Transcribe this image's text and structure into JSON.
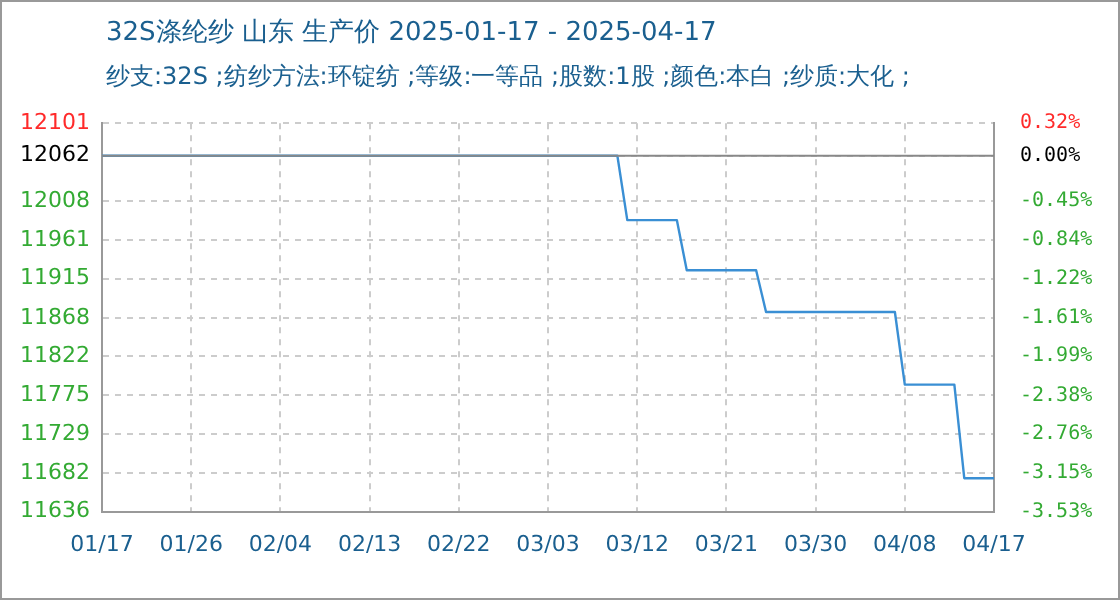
{
  "chart_data": {
    "type": "line",
    "title": "32S涤纶纱 山东 生产价 2025-01-17 - 2025-04-17",
    "subtitle": "纱支:32S ;纺纱方法:环锭纺 ;等级:一等品 ;股数:1股 ;颜色:本白 ;纱质:大化 ;",
    "x": [
      "2025-01-17",
      "2025-03-10",
      "2025-03-11",
      "2025-03-16",
      "2025-03-17",
      "2025-03-24",
      "2025-03-25",
      "2025-04-07",
      "2025-04-08",
      "2025-04-13",
      "2025-04-14",
      "2025-04-17"
    ],
    "series": [
      {
        "color": "#3a8fd4",
        "values": [
          12062,
          12062,
          11985,
          11985,
          11925,
          11925,
          11875,
          11875,
          11788,
          11788,
          11676,
          11676
        ]
      }
    ],
    "xlim": [
      "2025-01-17",
      "2025-04-17"
    ],
    "xticks": [
      {
        "value": "2025-01-17",
        "label": "01/17"
      },
      {
        "value": "2025-01-26",
        "label": "01/26"
      },
      {
        "value": "2025-02-04",
        "label": "02/04"
      },
      {
        "value": "2025-02-13",
        "label": "02/13"
      },
      {
        "value": "2025-02-22",
        "label": "02/22"
      },
      {
        "value": "2025-03-03",
        "label": "03/03"
      },
      {
        "value": "2025-03-12",
        "label": "03/12"
      },
      {
        "value": "2025-03-21",
        "label": "03/21"
      },
      {
        "value": "2025-03-30",
        "label": "03/30"
      },
      {
        "value": "2025-04-08",
        "label": "04/08"
      },
      {
        "value": "2025-04-17",
        "label": "04/17"
      }
    ],
    "ylim": [
      11636,
      12101
    ],
    "yticks": [
      11636,
      11682,
      11729,
      11775,
      11822,
      11868,
      11915,
      11961,
      12008,
      12062,
      12101
    ],
    "y2lim": [
      -3.53,
      0.32
    ],
    "y2ticks": [
      {
        "value": -3.53,
        "label": "-3.53%"
      },
      {
        "value": -3.15,
        "label": "-3.15%"
      },
      {
        "value": -2.76,
        "label": "-2.76%"
      },
      {
        "value": -2.38,
        "label": "-2.38%"
      },
      {
        "value": -1.99,
        "label": "-1.99%"
      },
      {
        "value": -1.61,
        "label": "-1.61%"
      },
      {
        "value": -1.22,
        "label": "-1.22%"
      },
      {
        "value": -0.84,
        "label": "-0.84%"
      },
      {
        "value": -0.45,
        "label": "-0.45%"
      },
      {
        "value": 0,
        "label": "0.00%"
      },
      {
        "value": 0.32,
        "label": "0.32%"
      }
    ],
    "ref_lines": [
      {
        "axis": "y",
        "value": 12062,
        "color": "#888888"
      }
    ],
    "grid": true,
    "legend": false,
    "marker": "none",
    "line_style": "solid"
  }
}
